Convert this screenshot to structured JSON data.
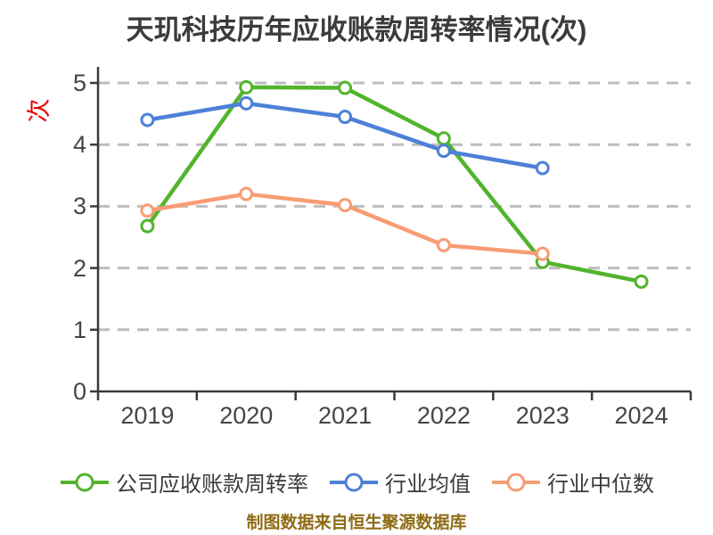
{
  "title": "天玑科技历年应收账款周转率情况(次)",
  "footer": "制图数据来自恒生聚源数据库",
  "colors": {
    "background": "#ffffff",
    "title_text": "#3b3b3b",
    "tick_text": "#454545",
    "axis_spine": "#3a3a3a",
    "gridline": "#bdbdbd",
    "y_unit_label": "#e60000",
    "series_company": "#52b42c",
    "series_industry_mean": "#4d80d8",
    "series_industry_median": "#f89c74",
    "footer_text": "#8e6b15",
    "marker_fill": "#ffffff"
  },
  "chart_data": {
    "type": "line",
    "title": "天玑科技历年应收账款周转率情况(次)",
    "ylabel": "次",
    "xlabel": "",
    "categories": [
      "2019",
      "2020",
      "2021",
      "2022",
      "2023",
      "2024"
    ],
    "yticks": [
      0,
      1,
      2,
      3,
      4,
      5
    ],
    "ylim": [
      0,
      5.26
    ],
    "grid": "horizontal-dashed",
    "legend_position": "bottom",
    "series": [
      {
        "name": "公司应收账款周转率",
        "color": "#52b42c",
        "marker": "circle-white-fill",
        "values": [
          2.68,
          4.93,
          4.92,
          4.1,
          2.1,
          1.78
        ]
      },
      {
        "name": "行业均值",
        "color": "#4d80d8",
        "marker": "circle-white-fill",
        "values": [
          4.4,
          4.67,
          4.45,
          3.9,
          3.62,
          null
        ]
      },
      {
        "name": "行业中位数",
        "color": "#f89c74",
        "marker": "circle-white-fill",
        "values": [
          2.93,
          3.2,
          3.02,
          2.37,
          2.23,
          null
        ]
      }
    ],
    "footer": "制图数据来自恒生聚源数据库"
  }
}
